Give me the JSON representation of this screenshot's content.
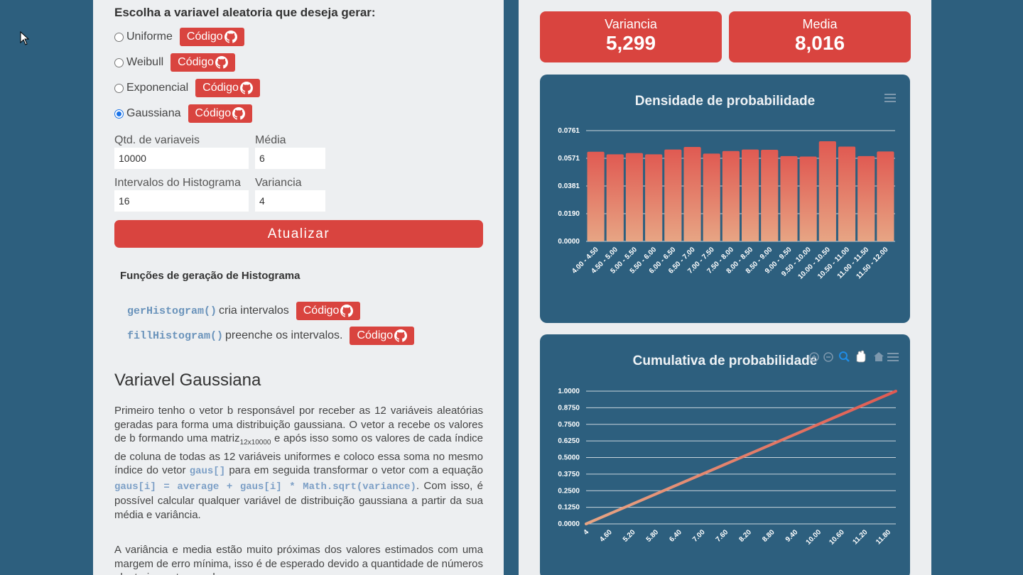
{
  "form": {
    "heading": "Escolha a variavel aleatoria que deseja gerar:",
    "options": [
      {
        "label": "Uniforme",
        "checked": false,
        "button": "Código"
      },
      {
        "label": "Weibull",
        "checked": false,
        "button": "Código"
      },
      {
        "label": "Exponencial",
        "checked": false,
        "button": "Código"
      },
      {
        "label": "Gaussiana",
        "checked": true,
        "button": "Código"
      }
    ],
    "qtd_label": "Qtd. de variaveis",
    "qtd_value": "10000",
    "media_label": "Média",
    "media_value": "6",
    "intervals_label": "Intervalos do Histograma",
    "intervals_value": "16",
    "variancia_label": "Variancia",
    "variancia_value": "4",
    "update_button": "Atualizar"
  },
  "histogram_functions": {
    "title": "Funções de geração de Histograma",
    "items": [
      {
        "code": "gerHistogram()",
        "text": "cria intervalos",
        "button": "Código"
      },
      {
        "code": "fillHistogram()",
        "text": "preenche os intervalos.",
        "button": "Código"
      }
    ]
  },
  "article": {
    "title": "Variavel Gaussiana",
    "p1_a": "Primeiro tenho o vetor b responsável por receber as 12 variáveis aleatórias geradas para forma uma distribuição gaussiana. O vetor a recebe os valores de b formando uma matriz",
    "p1_sub": "12x10000",
    "p1_b": " e após isso somo os valores de cada índice de coluna de todas as 12 variáveis uniformes e coloco essa soma no mesmo índice do vetor ",
    "p1_code1": "gaus[]",
    "p1_c": " para em seguida transformar o vetor com a equação ",
    "p1_code2": "gaus[i] = average + gaus[i] * Math.sqrt(variance)",
    "p1_d": ". Com isso, é possível calcular qualquer variável de distribuição gaussiana a partir da sua média e variância.",
    "p2": "A variância e media estão muito próximas dos valores estimados com uma margem de erro mínima, isso é de esperado devido a quantidade de números aleatoriamente gerados."
  },
  "stats": {
    "variance_label": "Variancia",
    "variance_value": "5,299",
    "mean_label": "Media",
    "mean_value": "8,016"
  },
  "colors": {
    "accent": "#d9443f",
    "background": "#2d5f7e",
    "bar_top": "#e05a52",
    "bar_bottom": "#e7a584"
  },
  "chart_data": [
    {
      "type": "bar",
      "title": "Densidade de probabilidade",
      "categories": [
        "4.00 - 4.50",
        "4.50 - 5.00",
        "5.00 - 5.50",
        "5.50 - 6.00",
        "6.00 - 6.50",
        "6.50 - 7.00",
        "7.00 - 7.50",
        "7.50 - 8.00",
        "8.00 - 8.50",
        "8.50 - 9.00",
        "9.00 - 9.50",
        "9.50 - 10.00",
        "10.00 - 10.50",
        "10.50 - 11.00",
        "11.00 - 11.50",
        "11.50 - 12.00"
      ],
      "values": [
        0.0616,
        0.0598,
        0.0607,
        0.0598,
        0.0631,
        0.0649,
        0.0603,
        0.0621,
        0.0631,
        0.0629,
        0.0586,
        0.0583,
        0.0688,
        0.0651,
        0.0586,
        0.0618
      ],
      "yticks": [
        "0.0000",
        "0.0190",
        "0.0381",
        "0.0571",
        "0.0761"
      ],
      "ylim": [
        0,
        0.0761
      ],
      "grid": true
    },
    {
      "type": "line",
      "title": "Cumulativa de probabilidade",
      "x": [
        4,
        12
      ],
      "y": [
        0,
        1
      ],
      "xticks": [
        "4",
        "4.60",
        "5.20",
        "5.80",
        "6.40",
        "7.00",
        "7.60",
        "8.20",
        "8.80",
        "9.40",
        "10.00",
        "10.60",
        "11.20",
        "11.80"
      ],
      "yticks": [
        "0.0000",
        "0.1250",
        "0.2500",
        "0.3750",
        "0.5000",
        "0.6250",
        "0.7500",
        "0.8750",
        "1.0000"
      ],
      "ylim": [
        0,
        1
      ],
      "grid": true
    }
  ]
}
